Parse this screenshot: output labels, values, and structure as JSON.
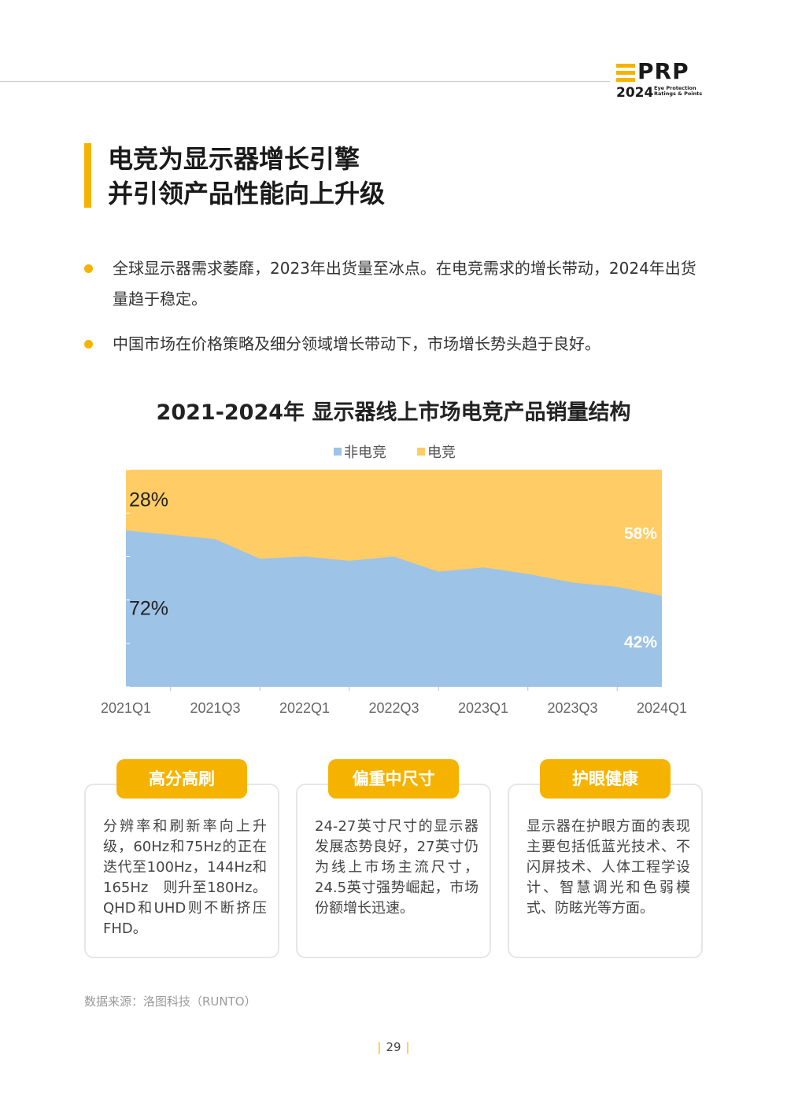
{
  "header": {
    "logo_word": "PRP",
    "logo_year": "2024",
    "logo_tagline_1": "Eye Protection",
    "logo_tagline_2": "Ratings & Points"
  },
  "title": {
    "line1": "电竞为显示器增长引擎",
    "line2": "并引领产品性能向上升级"
  },
  "bullets": [
    "全球显示器需求萎靡，2023年出货量至冰点。在电竞需求的增长带动，2024年出货量趋于稳定。",
    "中国市场在价格策略及细分领域增长带动下，市场增长势头趋于良好。"
  ],
  "chart_data": {
    "type": "area",
    "title": "2021-2024年 显示器线上市场电竞产品销量结构",
    "legend": [
      "非电竞",
      "电竞"
    ],
    "legend_position": "top-center",
    "stacked": "percent",
    "x": [
      "2021Q1",
      "2021Q2",
      "2021Q3",
      "2021Q4",
      "2022Q1",
      "2022Q2",
      "2022Q3",
      "2022Q4",
      "2023Q1",
      "2023Q2",
      "2023Q3",
      "2023Q4",
      "2024Q1"
    ],
    "x_tick_labels": [
      "2021Q1",
      "2021Q3",
      "2022Q1",
      "2022Q3",
      "2023Q1",
      "2023Q3",
      "2024Q1"
    ],
    "series": [
      {
        "name": "非电竞",
        "color": "#9dc3e6",
        "values": [
          72,
          70,
          68,
          59,
          60,
          58,
          60,
          53,
          55,
          52,
          48,
          46,
          42
        ]
      },
      {
        "name": "电竞",
        "color": "#ffcc66",
        "values": [
          28,
          30,
          32,
          41,
          40,
          42,
          40,
          47,
          45,
          48,
          52,
          54,
          58
        ]
      }
    ],
    "data_labels": [
      {
        "series": "电竞",
        "x": "2021Q1",
        "text": "28%"
      },
      {
        "series": "非电竞",
        "x": "2021Q1",
        "text": "72%"
      },
      {
        "series": "电竞",
        "x": "2024Q1",
        "text": "58%"
      },
      {
        "series": "非电竞",
        "x": "2024Q1",
        "text": "42%"
      }
    ],
    "ylim": [
      0,
      100
    ],
    "grid": false
  },
  "cards": [
    {
      "tag": "高分高刷",
      "text": "分辨率和刷新率向上升级，60Hz和75Hz的正在迭代至100Hz，144Hz和165Hz　则升至180Hz。QHD和UHD则不断挤压FHD。"
    },
    {
      "tag": "偏重中尺寸",
      "text": "24-27英寸尺寸的显示器发展态势良好，27英寸仍为线上市场主流尺寸，24.5英寸强势崛起，市场份额增长迅速。"
    },
    {
      "tag": "护眼健康",
      "text": "显示器在护眼方面的表现主要包括低蓝光技术、不闪屏技术、人体工程学设计、智慧调光和色弱模式、防眩光等方面。"
    }
  ],
  "source": "数据来源：洛图科技（RUNTO）",
  "page_number": "29",
  "page_sep": "|",
  "colors": {
    "accent": "#f5b300",
    "non_esports": "#9dc3e6",
    "esports": "#ffcc66"
  }
}
